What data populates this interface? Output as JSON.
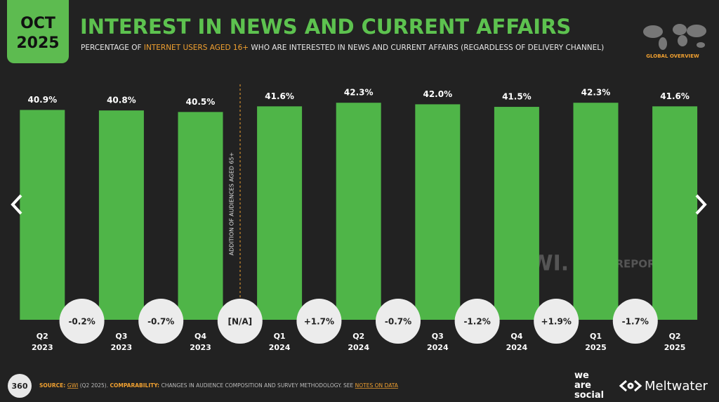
{
  "badge": {
    "month": "OCT",
    "year": "2025"
  },
  "chart_data": {
    "type": "bar",
    "title": "INTEREST IN NEWS AND CURRENT AFFAIRS",
    "subtitle": [
      "PERCENTAGE OF ",
      "INTERNET USERS AGED 16+",
      " WHO ARE INTERESTED IN NEWS AND CURRENT AFFAIRS (REGARDLESS OF DELIVERY CHANNEL)"
    ],
    "categories": [
      [
        "Q2",
        "2023"
      ],
      [
        "Q3",
        "2023"
      ],
      [
        "Q4",
        "2023"
      ],
      [
        "Q1",
        "2024"
      ],
      [
        "Q2",
        "2024"
      ],
      [
        "Q3",
        "2024"
      ],
      [
        "Q4",
        "2024"
      ],
      [
        "Q1",
        "2025"
      ],
      [
        "Q2",
        "2025"
      ]
    ],
    "values": [
      40.9,
      40.8,
      40.5,
      41.6,
      42.3,
      42.0,
      41.5,
      42.3,
      41.6
    ],
    "value_labels": [
      "40.9%",
      "40.8%",
      "40.5%",
      "41.6%",
      "42.3%",
      "42.0%",
      "41.5%",
      "42.3%",
      "41.6%"
    ],
    "changes": [
      "-0.2%",
      "-0.7%",
      "[N/A]",
      "+1.7%",
      "-0.7%",
      "-1.2%",
      "+1.9%",
      "-1.7%"
    ],
    "annotation": "ADDITION OF AUDIENCES AGED 65+",
    "color": "#4fb548",
    "ylim": [
      0,
      45
    ]
  },
  "header": {
    "region": "GLOBAL OVERVIEW"
  },
  "footer": {
    "page": "360",
    "source": [
      "SOURCE: ",
      "GWI",
      " (Q2 2025). ",
      "COMPARABILITY: ",
      "CHANGES IN AUDIENCE COMPOSITION AND SURVEY METHODOLOGY. SEE ",
      "NOTES ON DATA"
    ],
    "logos": {
      "gwi": "GWI.",
      "datareportal": "DATAREPORTAL",
      "was": [
        "we",
        "are",
        "social"
      ],
      "meltwater": "Meltwater"
    }
  }
}
